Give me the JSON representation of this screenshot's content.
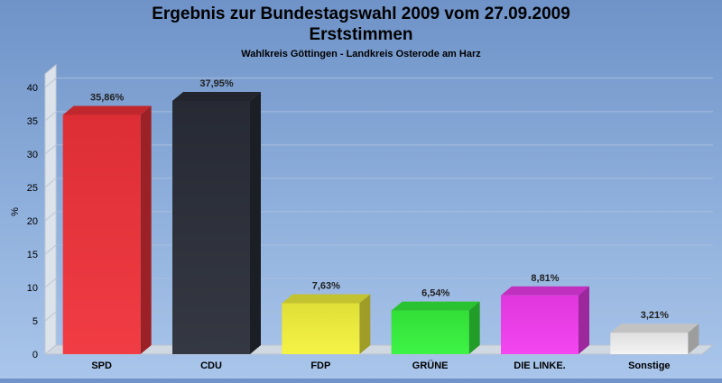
{
  "chart_data": {
    "type": "bar",
    "title": "Ergebnis zur Bundestagswahl 2009 vom 27.09.2009",
    "title2": "Erststimmen",
    "subtitle": "Wahlkreis Göttingen - Landkreis Osterode am Harz",
    "ylabel": "%",
    "xlabel": "",
    "ylim": [
      0,
      42
    ],
    "yticks": [
      0,
      5,
      10,
      15,
      20,
      25,
      30,
      35,
      40
    ],
    "categories": [
      "SPD",
      "CDU",
      "FDP",
      "GRÜNE",
      "DIE LINKE.",
      "Sonstige"
    ],
    "values": [
      35.86,
      37.95,
      7.63,
      6.54,
      8.81,
      3.21
    ],
    "value_labels": [
      "35,86%",
      "37,95%",
      "7,63%",
      "6,54%",
      "8,81%",
      "3,21%"
    ],
    "colors": [
      "#f0323a",
      "#2a2e38",
      "#f4f23c",
      "#35f23c",
      "#f23cf0",
      "#f2f2f2"
    ],
    "grid": true,
    "legend": "none"
  }
}
